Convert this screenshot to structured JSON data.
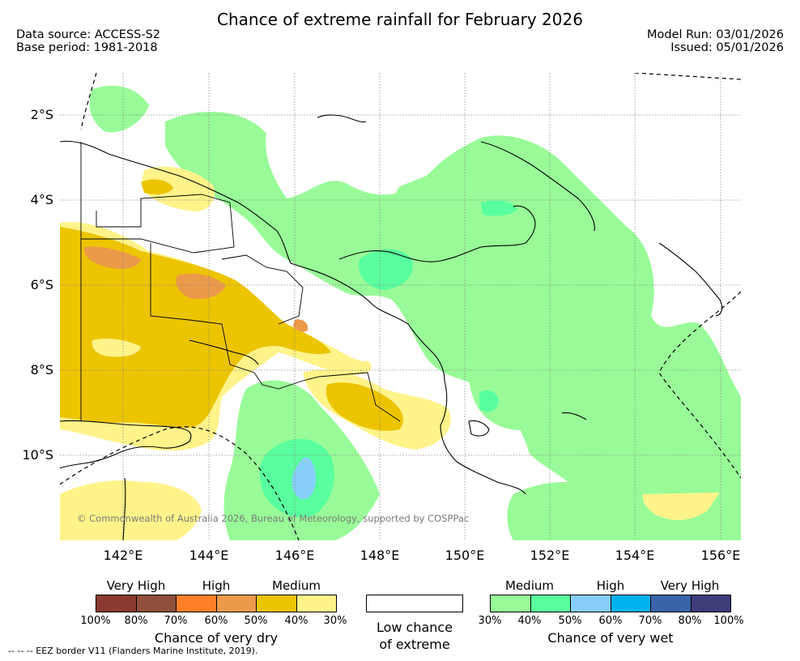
{
  "title": "Chance of extreme rainfall for February 2026",
  "data_source": "Data source: ACCESS-S2",
  "base_period": "Base period: 1981-2018",
  "model_run": "Model Run: 03/01/2026",
  "issued": "Issued: 05/01/2026",
  "lat_labels": [
    "2°S",
    "4°S",
    "6°S",
    "8°S",
    "10°S"
  ],
  "lon_labels": [
    "142°E",
    "144°E",
    "146°E",
    "148°E",
    "150°E",
    "152°E",
    "154°E",
    "156°E"
  ],
  "copyright": "© Commonwealth of Australia 2026, Bureau of Meteorology, supported by COSPPac",
  "legend_dry": {
    "levels": [
      "Very High",
      "High",
      "Medium"
    ],
    "ticks": [
      "100%",
      "80%",
      "70%",
      "60%",
      "50%",
      "40%",
      "30%"
    ],
    "label": "Chance of very dry",
    "colors": [
      "#8b3a2f",
      "#8f4f3a",
      "#ff7f27",
      "#eb9a4a",
      "#ecc400",
      "#fff38a"
    ]
  },
  "legend_low": {
    "line1": "Low chance",
    "line2": "of extreme"
  },
  "legend_wet": {
    "levels": [
      "Medium",
      "High",
      "Very High"
    ],
    "ticks": [
      "30%",
      "40%",
      "50%",
      "60%",
      "70%",
      "80%",
      "100%"
    ],
    "label": "Chance of very wet",
    "colors": [
      "#98fb98",
      "#59ff9e",
      "#87cefa",
      "#00b2ee",
      "#3a63a8",
      "#3f3d7a"
    ]
  },
  "eez_note": "-- -- -- EEZ border V11 (Flanders Marine Institute, 2019)."
}
